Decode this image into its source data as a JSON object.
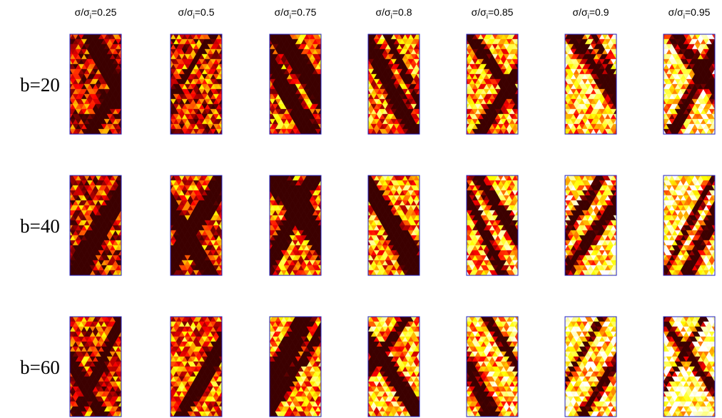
{
  "header": {
    "columns": [
      {
        "ratio": "σ/σ",
        "subscript": "i",
        "value": "=0.25"
      },
      {
        "ratio": "σ/σ",
        "subscript": "i",
        "value": "=0.5"
      },
      {
        "ratio": "σ/σ",
        "subscript": "i",
        "value": "=0.75"
      },
      {
        "ratio": "σ/σ",
        "subscript": "i",
        "value": "=0.8"
      },
      {
        "ratio": "σ/σ",
        "subscript": "i",
        "value": "=0.85"
      },
      {
        "ratio": "σ/σ",
        "subscript": "i",
        "value": "=0.9"
      },
      {
        "ratio": "σ/σ",
        "subscript": "i",
        "value": "=0.95"
      }
    ]
  },
  "rows": [
    "b=20",
    "b=40",
    "b=60"
  ]
}
